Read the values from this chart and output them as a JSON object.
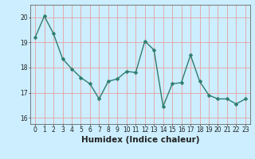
{
  "x": [
    0,
    1,
    2,
    3,
    4,
    5,
    6,
    7,
    8,
    9,
    10,
    11,
    12,
    13,
    14,
    15,
    16,
    17,
    18,
    19,
    20,
    21,
    22,
    23
  ],
  "y": [
    19.2,
    20.05,
    19.35,
    18.35,
    17.95,
    17.6,
    17.35,
    16.75,
    17.45,
    17.55,
    17.85,
    17.8,
    19.05,
    18.7,
    16.45,
    17.35,
    17.4,
    18.5,
    17.45,
    16.9,
    16.75,
    16.75,
    16.55,
    16.75
  ],
  "line_color": "#2e7d6e",
  "marker": "D",
  "marker_size": 2.5,
  "bg_color": "#cceeff",
  "grid_color": "#e8a0a0",
  "xlabel": "Humidex (Indice chaleur)",
  "xlim": [
    -0.5,
    23.5
  ],
  "ylim": [
    15.75,
    20.5
  ],
  "yticks": [
    16,
    17,
    18,
    19,
    20
  ],
  "xticks": [
    0,
    1,
    2,
    3,
    4,
    5,
    6,
    7,
    8,
    9,
    10,
    11,
    12,
    13,
    14,
    15,
    16,
    17,
    18,
    19,
    20,
    21,
    22,
    23
  ],
  "xtick_labels": [
    "0",
    "1",
    "2",
    "3",
    "4",
    "5",
    "6",
    "7",
    "8",
    "9",
    "10",
    "11",
    "12",
    "13",
    "14",
    "15",
    "16",
    "17",
    "18",
    "19",
    "20",
    "21",
    "22",
    "23"
  ],
  "axis_color": "#666666",
  "tick_color": "#222222",
  "label_fontsize": 6.5,
  "tick_fontsize": 5.5,
  "xlabel_fontsize": 7.5
}
